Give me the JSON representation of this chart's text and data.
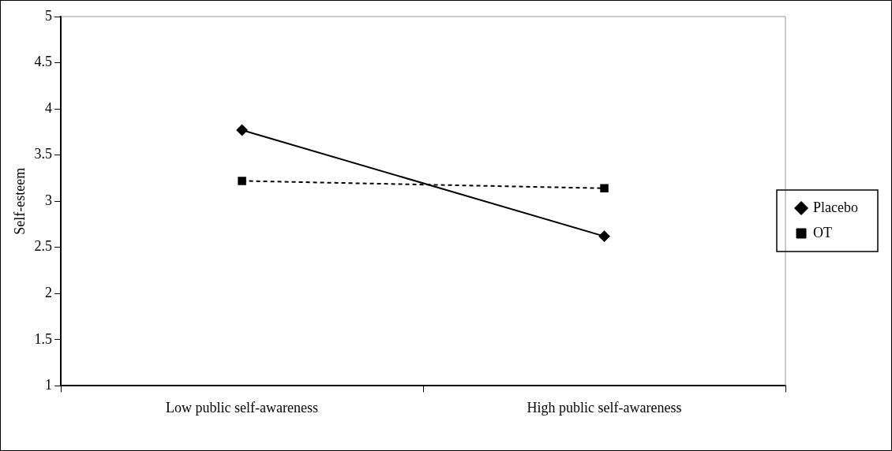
{
  "chart_data": {
    "type": "line",
    "ylabel": "Self-esteem",
    "categories": [
      "Low public self-awareness",
      "High public self-awareness"
    ],
    "series": [
      {
        "name": "Placebo",
        "color": "#000000",
        "values": [
          3.77,
          2.62
        ],
        "marker": "diamond",
        "line_style": "solid"
      },
      {
        "name": "OT",
        "color": "#000000",
        "values": [
          3.22,
          3.14
        ],
        "marker": "square",
        "line_style": "dashed"
      }
    ],
    "ylim": [
      1,
      5
    ],
    "yticks": [
      1,
      1.5,
      2,
      2.5,
      3,
      3.5,
      4,
      4.5,
      5
    ],
    "grid": false,
    "legend": "right"
  }
}
